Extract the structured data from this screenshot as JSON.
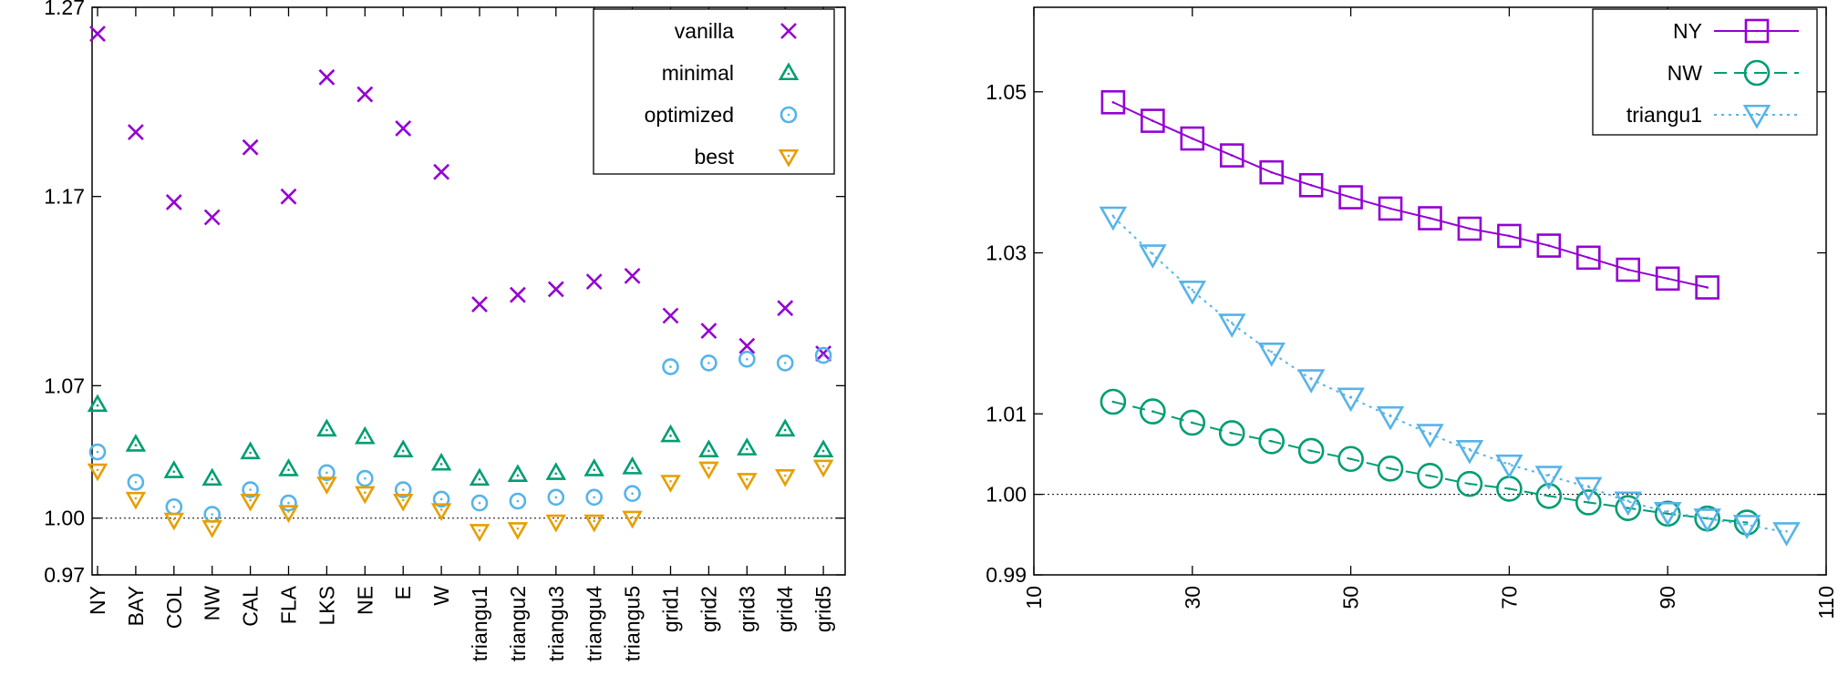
{
  "chart_data": [
    {
      "type": "scatter",
      "categories": [
        "NY",
        "BAY",
        "COL",
        "NW",
        "CAL",
        "FLA",
        "LKS",
        "NE",
        "E",
        "W",
        "triangu1",
        "triangu2",
        "triangu3",
        "triangu4",
        "triangu5",
        "grid1",
        "grid2",
        "grid3",
        "grid4",
        "grid5"
      ],
      "y_ticks": [
        {
          "value": 0.97,
          "label": "0.97"
        },
        {
          "value": 1.0,
          "label": "1.00"
        },
        {
          "value": 1.07,
          "label": "1.07"
        },
        {
          "value": 1.17,
          "label": "1.17"
        },
        {
          "value": 1.27,
          "label": "1.27"
        }
      ],
      "ylim": [
        0.97,
        1.27
      ],
      "reference_line": 1.0,
      "legend_position": "top-right",
      "series": [
        {
          "name": "vanilla",
          "marker": "cross",
          "color": "#9400d3",
          "values": [
            1.256,
            1.204,
            1.167,
            1.159,
            1.196,
            1.17,
            1.233,
            1.224,
            1.206,
            1.183,
            1.113,
            1.118,
            1.121,
            1.125,
            1.128,
            1.107,
            1.099,
            1.091,
            1.111,
            1.087
          ]
        },
        {
          "name": "minimal",
          "marker": "triangle-up",
          "color": "#009e73",
          "values": [
            1.06,
            1.039,
            1.025,
            1.021,
            1.035,
            1.026,
            1.047,
            1.043,
            1.036,
            1.029,
            1.021,
            1.023,
            1.024,
            1.026,
            1.027,
            1.044,
            1.036,
            1.037,
            1.047,
            1.036
          ]
        },
        {
          "name": "optimized",
          "marker": "circle",
          "color": "#56b4e9",
          "values": [
            1.035,
            1.019,
            1.006,
            1.002,
            1.015,
            1.008,
            1.024,
            1.021,
            1.015,
            1.01,
            1.008,
            1.009,
            1.011,
            1.011,
            1.013,
            1.08,
            1.082,
            1.084,
            1.082,
            1.086
          ]
        },
        {
          "name": "best",
          "marker": "triangle-down",
          "color": "#e69f00",
          "values": [
            1.025,
            1.01,
            0.999,
            0.995,
            1.009,
            1.003,
            1.018,
            1.013,
            1.009,
            1.004,
            0.993,
            0.994,
            0.998,
            0.998,
            1.0,
            1.019,
            1.026,
            1.02,
            1.022,
            1.027
          ]
        }
      ]
    },
    {
      "type": "line",
      "x_ticks": [
        10,
        30,
        50,
        70,
        90,
        110
      ],
      "xlim": [
        10,
        110
      ],
      "y_ticks": [
        {
          "value": 0.99,
          "label": "0.99"
        },
        {
          "value": 1.0,
          "label": "1.00"
        },
        {
          "value": 1.01,
          "label": "1.01"
        },
        {
          "value": 1.03,
          "label": "1.03"
        },
        {
          "value": 1.05,
          "label": "1.05"
        }
      ],
      "ylim": [
        0.99,
        1.0605
      ],
      "reference_line": 1.0,
      "legend_position": "top-right",
      "series": [
        {
          "name": "NY",
          "marker": "square",
          "line": "solid",
          "color": "#9400d3",
          "x": [
            20,
            25,
            30,
            35,
            40,
            45,
            50,
            55,
            60,
            65,
            70,
            75,
            80,
            85,
            90,
            95
          ],
          "y": [
            1.0487,
            1.0464,
            1.0442,
            1.0421,
            1.04,
            1.0384,
            1.0369,
            1.0355,
            1.0343,
            1.033,
            1.0321,
            1.0309,
            1.0294,
            1.0279,
            1.0268,
            1.0257
          ]
        },
        {
          "name": "NW",
          "marker": "circle",
          "line": "dashed",
          "color": "#009e73",
          "x": [
            20,
            25,
            30,
            35,
            40,
            45,
            50,
            55,
            60,
            65,
            70,
            75,
            80,
            85,
            90,
            95,
            100
          ],
          "y": [
            1.0115,
            1.0103,
            1.0089,
            1.0076,
            1.0066,
            1.0054,
            1.0044,
            1.0032,
            1.0023,
            1.0013,
            1.0007,
            0.9998,
            0.999,
            0.9983,
            0.9976,
            0.997,
            0.9965
          ]
        },
        {
          "name": "triangu1",
          "marker": "triangle-down",
          "line": "dotted",
          "color": "#56b4e9",
          "x": [
            20,
            25,
            30,
            35,
            40,
            45,
            50,
            55,
            60,
            65,
            70,
            75,
            80,
            85,
            90,
            95,
            100,
            105
          ],
          "y": [
            1.0345,
            1.0298,
            1.0253,
            1.0212,
            1.0176,
            1.0143,
            1.012,
            1.0097,
            1.0075,
            1.0055,
            1.0037,
            1.0023,
            1.0009,
            0.9991,
            0.9978,
            0.997,
            0.9962,
            0.9953
          ]
        }
      ]
    }
  ]
}
